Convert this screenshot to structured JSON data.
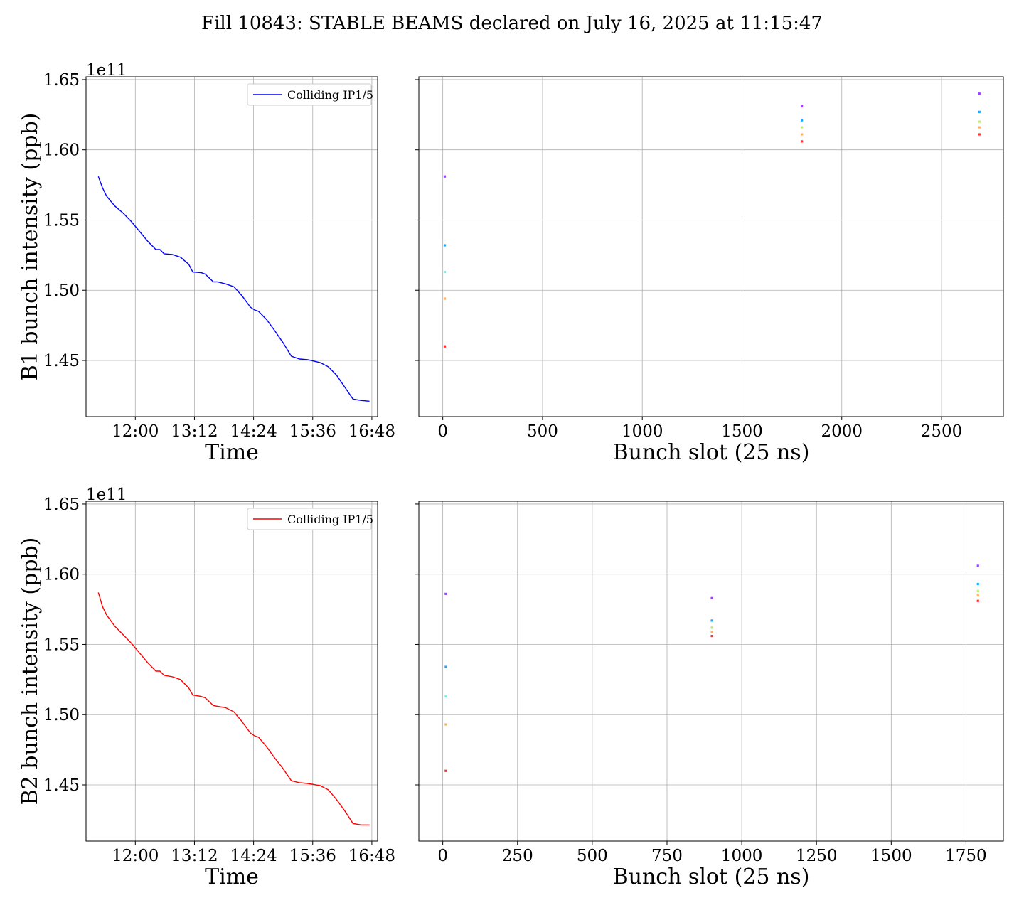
{
  "title": "Fill 10843: STABLE BEAMS declared on July 16, 2025 at 11:15:47",
  "chart_data": [
    {
      "id": "b1-time",
      "type": "line",
      "title": "",
      "xlabel": "Time",
      "ylabel": "B1 bunch intensity (ppb)",
      "y_offset_label": "1e11",
      "ylim": [
        1.41,
        1.652
      ],
      "yticks": [
        1.45,
        1.5,
        1.55,
        1.6,
        1.65
      ],
      "ytick_labels": [
        "1.45",
        "1.50",
        "1.55",
        "1.60",
        "1.65"
      ],
      "xlim": [
        "11:00",
        "16:55"
      ],
      "xticks": [
        "12:00",
        "13:12",
        "14:24",
        "15:36",
        "16:48"
      ],
      "grid": true,
      "legend": {
        "position": "upper right"
      },
      "series": [
        {
          "name": "Colliding IP1/5",
          "color": "#0000ff",
          "x": [
            "11:15",
            "11:20",
            "11:25",
            "11:35",
            "11:45",
            "11:55",
            "12:05",
            "12:15",
            "12:25",
            "12:30",
            "12:35",
            "12:45",
            "12:55",
            "13:05",
            "13:10",
            "13:20",
            "13:25",
            "13:35",
            "13:40",
            "13:50",
            "14:00",
            "14:10",
            "14:20",
            "14:25",
            "14:30",
            "14:40",
            "14:50",
            "15:00",
            "15:10",
            "15:20",
            "15:30",
            "15:45",
            "15:55",
            "16:05",
            "16:15",
            "16:25",
            "16:35",
            "16:45"
          ],
          "values": [
            1.581,
            1.573,
            1.567,
            1.56,
            1.555,
            1.549,
            1.542,
            1.535,
            1.529,
            1.529,
            1.526,
            1.5255,
            1.5235,
            1.5185,
            1.513,
            1.5125,
            1.5115,
            1.506,
            1.506,
            1.5045,
            1.5025,
            1.496,
            1.488,
            1.486,
            1.485,
            1.479,
            1.471,
            1.4625,
            1.453,
            1.451,
            1.4505,
            1.4485,
            1.4455,
            1.4395,
            1.431,
            1.4225,
            1.4215,
            1.421
          ]
        }
      ]
    },
    {
      "id": "b1-slot",
      "type": "scatter",
      "title": "",
      "xlabel": "Bunch slot (25 ns)",
      "ylabel": "",
      "ylim": [
        1.41,
        1.652
      ],
      "yticks": [
        1.45,
        1.5,
        1.55,
        1.6,
        1.65
      ],
      "xlim": [
        -120,
        2810
      ],
      "xticks": [
        0,
        500,
        1000,
        1500,
        2000,
        2500
      ],
      "grid": true,
      "points": [
        {
          "x": 10,
          "y": 1.581,
          "color": "#a040ff"
        },
        {
          "x": 10,
          "y": 1.532,
          "color": "#20a8ff"
        },
        {
          "x": 10,
          "y": 1.513,
          "color": "#80f0e0"
        },
        {
          "x": 10,
          "y": 1.494,
          "color": "#ffb060"
        },
        {
          "x": 10,
          "y": 1.46,
          "color": "#ff3030"
        },
        {
          "x": 1800,
          "y": 1.631,
          "color": "#a040ff"
        },
        {
          "x": 1800,
          "y": 1.621,
          "color": "#20a8ff"
        },
        {
          "x": 1800,
          "y": 1.616,
          "color": "#c0e880"
        },
        {
          "x": 1800,
          "y": 1.611,
          "color": "#ffb060"
        },
        {
          "x": 1800,
          "y": 1.606,
          "color": "#ff3030"
        },
        {
          "x": 2690,
          "y": 1.64,
          "color": "#a040ff"
        },
        {
          "x": 2690,
          "y": 1.627,
          "color": "#20a8ff"
        },
        {
          "x": 2690,
          "y": 1.62,
          "color": "#c0e880"
        },
        {
          "x": 2690,
          "y": 1.616,
          "color": "#ffb060"
        },
        {
          "x": 2690,
          "y": 1.611,
          "color": "#ff3030"
        }
      ]
    },
    {
      "id": "b2-time",
      "type": "line",
      "title": "",
      "xlabel": "Time",
      "ylabel": "B2 bunch intensity (ppb)",
      "y_offset_label": "1e11",
      "ylim": [
        1.41,
        1.652
      ],
      "yticks": [
        1.45,
        1.5,
        1.55,
        1.6,
        1.65
      ],
      "ytick_labels": [
        "1.45",
        "1.50",
        "1.55",
        "1.60",
        "1.65"
      ],
      "xlim": [
        "11:00",
        "16:55"
      ],
      "xticks": [
        "12:00",
        "13:12",
        "14:24",
        "15:36",
        "16:48"
      ],
      "grid": true,
      "legend": {
        "position": "upper right"
      },
      "series": [
        {
          "name": "Colliding IP1/5",
          "color": "#ff0000",
          "x": [
            "11:15",
            "11:20",
            "11:25",
            "11:35",
            "11:45",
            "11:55",
            "12:05",
            "12:15",
            "12:25",
            "12:30",
            "12:35",
            "12:45",
            "12:55",
            "13:05",
            "13:10",
            "13:20",
            "13:25",
            "13:35",
            "13:40",
            "13:50",
            "14:00",
            "14:10",
            "14:20",
            "14:25",
            "14:30",
            "14:40",
            "14:50",
            "15:00",
            "15:10",
            "15:20",
            "15:30",
            "15:45",
            "15:55",
            "16:05",
            "16:15",
            "16:25",
            "16:35",
            "16:45"
          ],
          "values": [
            1.587,
            1.577,
            1.571,
            1.563,
            1.557,
            1.551,
            1.544,
            1.537,
            1.531,
            1.531,
            1.528,
            1.527,
            1.525,
            1.519,
            1.514,
            1.513,
            1.512,
            1.5065,
            1.506,
            1.505,
            1.502,
            1.495,
            1.487,
            1.485,
            1.484,
            1.477,
            1.469,
            1.4615,
            1.453,
            1.4515,
            1.451,
            1.4495,
            1.4465,
            1.4395,
            1.4315,
            1.4225,
            1.4215,
            1.4215
          ]
        }
      ]
    },
    {
      "id": "b2-slot",
      "type": "scatter",
      "title": "",
      "xlabel": "Bunch slot (25 ns)",
      "ylabel": "",
      "ylim": [
        1.41,
        1.652
      ],
      "yticks": [
        1.45,
        1.5,
        1.55,
        1.6,
        1.65
      ],
      "xlim": [
        -80,
        1875
      ],
      "xticks": [
        0,
        250,
        500,
        750,
        1000,
        1250,
        1500,
        1750
      ],
      "grid": true,
      "points": [
        {
          "x": 10,
          "y": 1.586,
          "color": "#a040ff"
        },
        {
          "x": 10,
          "y": 1.534,
          "color": "#20a8ff"
        },
        {
          "x": 10,
          "y": 1.513,
          "color": "#80f0e0"
        },
        {
          "x": 10,
          "y": 1.493,
          "color": "#ffb060"
        },
        {
          "x": 10,
          "y": 1.46,
          "color": "#ff3030"
        },
        {
          "x": 900,
          "y": 1.583,
          "color": "#a040ff"
        },
        {
          "x": 900,
          "y": 1.567,
          "color": "#20a8ff"
        },
        {
          "x": 900,
          "y": 1.562,
          "color": "#c0e880"
        },
        {
          "x": 900,
          "y": 1.559,
          "color": "#ffb060"
        },
        {
          "x": 900,
          "y": 1.556,
          "color": "#ff3030"
        },
        {
          "x": 1790,
          "y": 1.606,
          "color": "#a040ff"
        },
        {
          "x": 1790,
          "y": 1.593,
          "color": "#20a8ff"
        },
        {
          "x": 1790,
          "y": 1.588,
          "color": "#c0e880"
        },
        {
          "x": 1790,
          "y": 1.585,
          "color": "#ffb060"
        },
        {
          "x": 1790,
          "y": 1.581,
          "color": "#ff3030"
        }
      ]
    }
  ]
}
